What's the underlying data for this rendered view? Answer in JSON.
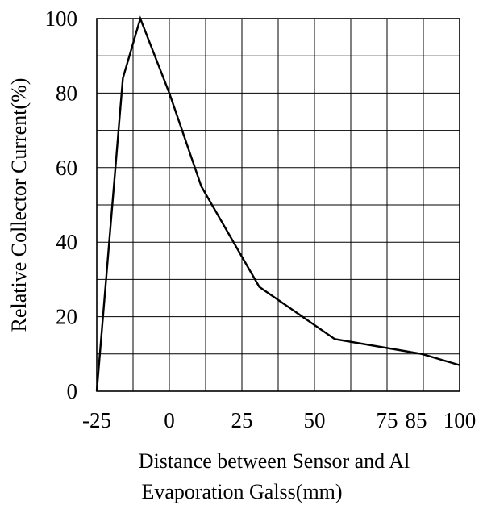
{
  "chart_data": {
    "type": "line",
    "title": "",
    "xlabel": [
      "Distance between Sensor and Al",
      "Evaporation Galss(mm)"
    ],
    "ylabel": "Relative Collector Current(%)",
    "xlim": [
      -25,
      100
    ],
    "ylim": [
      0,
      100
    ],
    "x_tick_labels": [
      "-25",
      "0",
      "25",
      "50",
      "75",
      "85",
      "100"
    ],
    "x_tick_values": [
      -25,
      0,
      25,
      50,
      75,
      85,
      100
    ],
    "y_tick_labels": [
      "0",
      "20",
      "40",
      "60",
      "80",
      "100"
    ],
    "y_tick_values": [
      0,
      20,
      40,
      60,
      80,
      100
    ],
    "grid": true,
    "series": [
      {
        "x": [
          -25,
          -16,
          -10,
          0,
          11,
          31,
          57,
          87,
          100
        ],
        "y": [
          0,
          84,
          100,
          80,
          55,
          28,
          14,
          10,
          7
        ]
      }
    ]
  }
}
